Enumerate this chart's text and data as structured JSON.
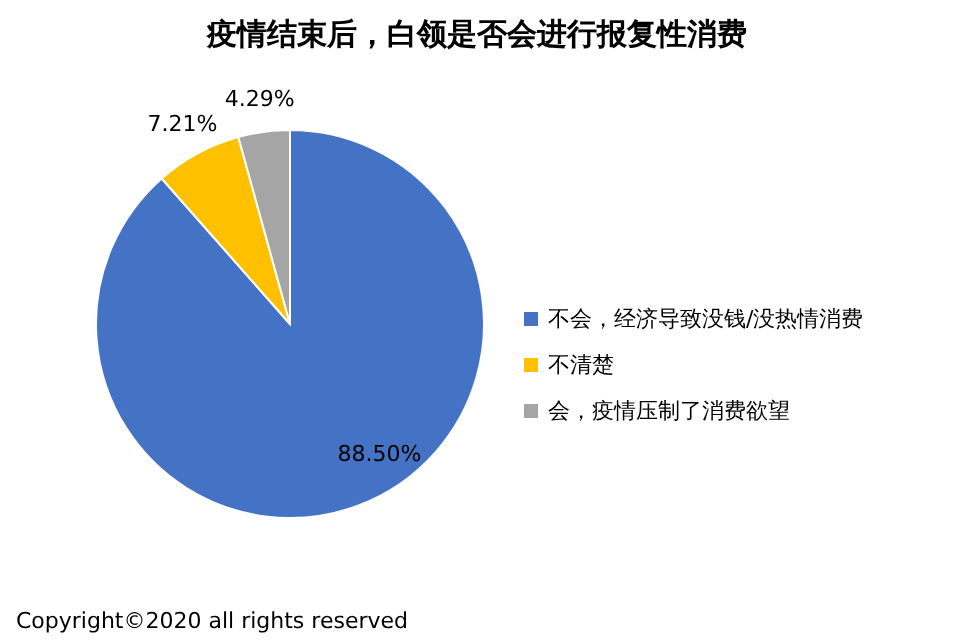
{
  "chart_data": {
    "type": "pie",
    "title": "疫情结束后，白领是否会进行报复性消费",
    "categories": [
      "不会，经济导致没钱/没热情消费",
      "不清楚",
      "会，疫情压制了消费欲望"
    ],
    "values": [
      88.5,
      7.21,
      4.29
    ],
    "colors": [
      "#4472c4",
      "#ffc000",
      "#a5a5a5"
    ],
    "value_labels": [
      "88.50%",
      "7.21%",
      "4.29%"
    ],
    "legend": "right",
    "annotations": [
      "Copyright©2020 all rights reserved"
    ]
  }
}
